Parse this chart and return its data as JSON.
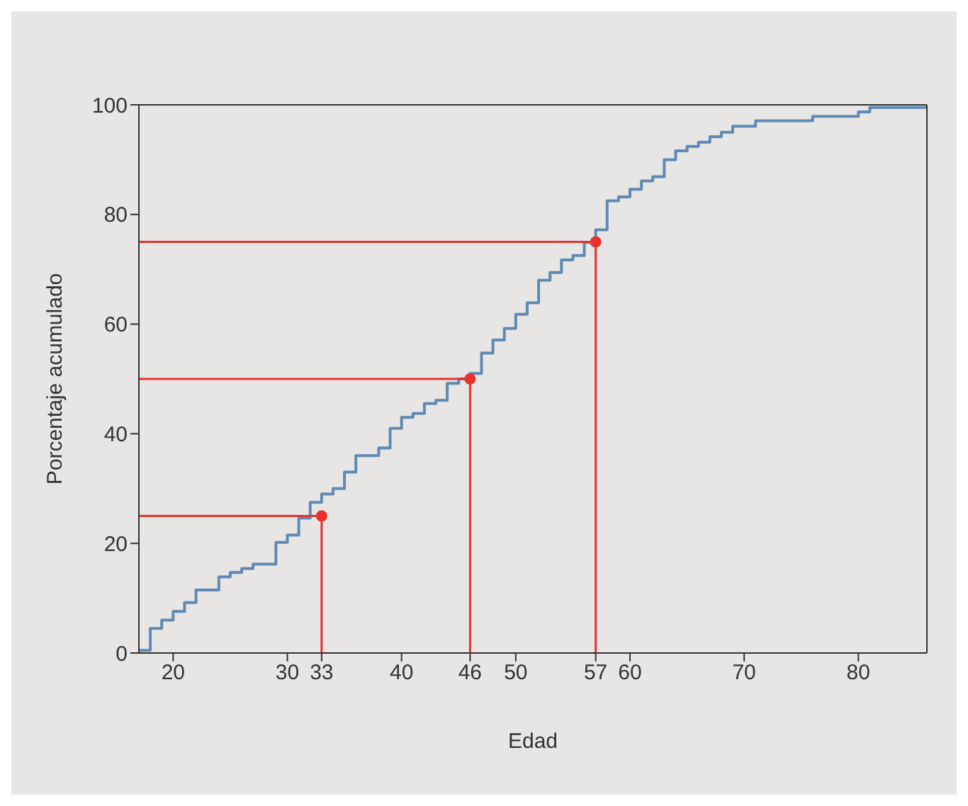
{
  "chart_data": {
    "type": "step",
    "xlabel": "Edad",
    "ylabel": "Porcentaje acumulado",
    "xlim": [
      17,
      86
    ],
    "xticks": [
      20,
      30,
      33,
      40,
      46,
      50,
      57,
      60,
      70,
      80
    ],
    "ylim": [
      0,
      100
    ],
    "yticks": [
      0,
      20,
      40,
      60,
      80,
      100
    ],
    "grid": false,
    "series": [
      {
        "color": "#5f8ab3",
        "marker": "none",
        "x": [
          17,
          18,
          19,
          20,
          21,
          22,
          24,
          25,
          26,
          27,
          29,
          30,
          31,
          32,
          33,
          34,
          35,
          36,
          38,
          39,
          40,
          41,
          42,
          43,
          44,
          45,
          46,
          47,
          48,
          49,
          50,
          51,
          52,
          53,
          54,
          55,
          56,
          57,
          58,
          59,
          60,
          61,
          62,
          63,
          64,
          65,
          66,
          67,
          68,
          69,
          71,
          76,
          80,
          81,
          86
        ],
        "values": [
          0.5,
          4.5,
          6,
          7.6,
          9.2,
          11.5,
          13.9,
          14.7,
          15.4,
          16.2,
          20.2,
          21.5,
          24.6,
          27.5,
          29,
          30,
          33,
          36,
          37.4,
          41,
          43,
          43.7,
          45.5,
          46.1,
          49.2,
          50,
          51,
          54.7,
          57.1,
          59.2,
          61.8,
          63.9,
          68,
          69.4,
          71.7,
          72.5,
          74.9,
          77.2,
          82.5,
          83.2,
          84.6,
          86.1,
          86.9,
          90,
          91.6,
          92.4,
          93.2,
          94.2,
          95,
          96.1,
          97.1,
          97.9,
          98.7,
          99.5,
          99.5
        ]
      },
      {
        "type": "line",
        "color": "#e8312f",
        "marker": "none",
        "x": [
          17,
          33,
          33
        ],
        "values": [
          25,
          25,
          0
        ]
      },
      {
        "type": "line",
        "color": "#e8312f",
        "marker": "none",
        "x": [
          17,
          46,
          46
        ],
        "values": [
          50,
          50,
          0
        ]
      },
      {
        "type": "line",
        "color": "#e8312f",
        "marker": "none",
        "x": [
          17,
          57,
          57
        ],
        "values": [
          75,
          75,
          0
        ]
      },
      {
        "type": "scatter",
        "color": "#e8312f",
        "marker": "circle",
        "x": [
          33,
          46,
          57
        ],
        "values": [
          25,
          50,
          75
        ]
      }
    ]
  }
}
